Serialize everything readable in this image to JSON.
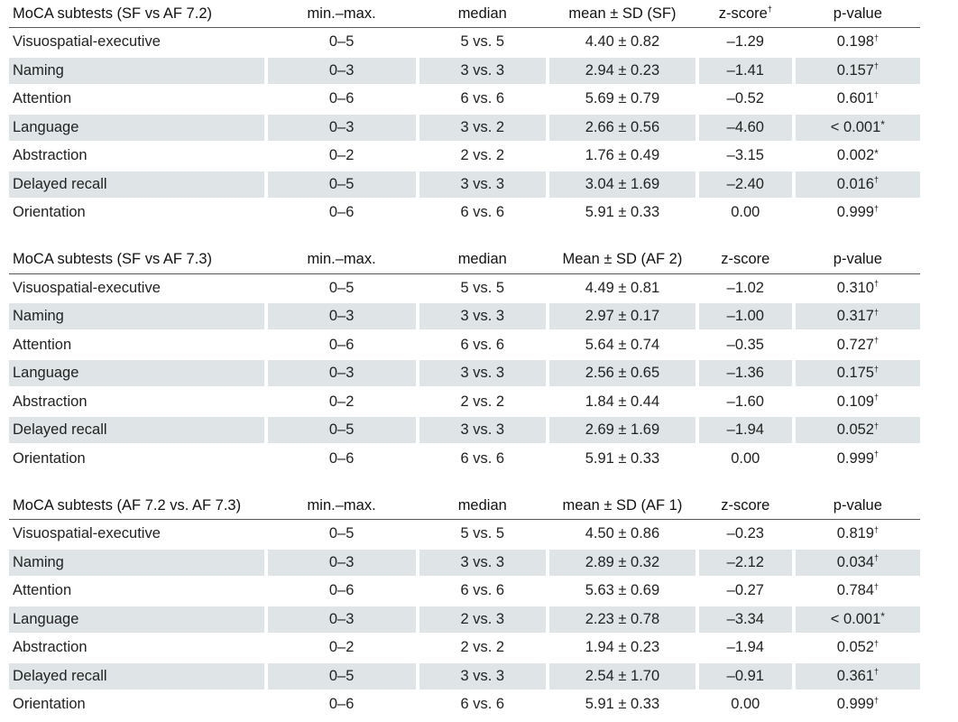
{
  "columns": {
    "range": "min.–max.",
    "median": "median",
    "zscore": "z-score",
    "zscore_mark": "†",
    "pvalue": "p-value"
  },
  "sections": [
    {
      "title": "MoCA subtests (SF vs AF 7.2)",
      "mean_header": "mean ± SD (SF)",
      "rows": [
        {
          "name": "Visuospatial-executive",
          "range": "0–5",
          "median": "5 vs. 5",
          "mean": "4.40 ± 0.82",
          "z": "–1.29",
          "p": "0.198",
          "mark": "†"
        },
        {
          "name": "Naming",
          "range": "0–3",
          "median": "3 vs. 3",
          "mean": "2.94 ± 0.23",
          "z": "–1.41",
          "p": "0.157",
          "mark": "†"
        },
        {
          "name": "Attention",
          "range": "0–6",
          "median": "6 vs. 6",
          "mean": "5.69 ± 0.79",
          "z": "–0.52",
          "p": "0.601",
          "mark": "†"
        },
        {
          "name": "Language",
          "range": "0–3",
          "median": "3 vs. 2",
          "mean": "2.66 ± 0.56",
          "z": "–4.60",
          "p": "< 0.001",
          "mark": "*"
        },
        {
          "name": "Abstraction",
          "range": "0–2",
          "median": "2 vs. 2",
          "mean": "1.76 ± 0.49",
          "z": "–3.15",
          "p": "0.002",
          "mark": "*"
        },
        {
          "name": "Delayed recall",
          "range": "0–5",
          "median": "3 vs. 3",
          "mean": "3.04 ± 1.69",
          "z": "–2.40",
          "p": "0.016",
          "mark": "†"
        },
        {
          "name": "Orientation",
          "range": "0–6",
          "median": "6 vs. 6",
          "mean": "5.91 ± 0.33",
          "z": "0.00",
          "p": "0.999",
          "mark": "†"
        }
      ]
    },
    {
      "title": "MoCA subtests (SF vs AF 7.3)",
      "mean_header": "Mean ± SD (AF 2)",
      "rows": [
        {
          "name": "Visuospatial-executive",
          "range": "0–5",
          "median": "5 vs. 5",
          "mean": "4.49 ± 0.81",
          "z": "–1.02",
          "p": "0.310",
          "mark": "†"
        },
        {
          "name": "Naming",
          "range": "0–3",
          "median": "3 vs. 3",
          "mean": "2.97 ± 0.17",
          "z": "–1.00",
          "p": "0.317",
          "mark": "†"
        },
        {
          "name": "Attention",
          "range": "0–6",
          "median": "6 vs. 6",
          "mean": "5.64 ± 0.74",
          "z": "–0.35",
          "p": "0.727",
          "mark": "†"
        },
        {
          "name": "Language",
          "range": "0–3",
          "median": "3 vs. 3",
          "mean": "2.56 ± 0.65",
          "z": "–1.36",
          "p": "0.175",
          "mark": "†"
        },
        {
          "name": "Abstraction",
          "range": "0–2",
          "median": "2 vs. 2",
          "mean": "1.84 ± 0.44",
          "z": "–1.60",
          "p": "0.109",
          "mark": "†"
        },
        {
          "name": "Delayed recall",
          "range": "0–5",
          "median": "3 vs. 3",
          "mean": "2.69 ± 1.69",
          "z": "–1.94",
          "p": "0.052",
          "mark": "†"
        },
        {
          "name": "Orientation",
          "range": "0–6",
          "median": "6 vs. 6",
          "mean": "5.91 ± 0.33",
          "z": "0.00",
          "p": "0.999",
          "mark": "†"
        }
      ]
    },
    {
      "title": "MoCA subtests (AF 7.2 vs. AF 7.3)",
      "mean_header": "mean ± SD (AF 1)",
      "rows": [
        {
          "name": "Visuospatial-executive",
          "range": "0–5",
          "median": "5 vs. 5",
          "mean": "4.50 ± 0.86",
          "z": "–0.23",
          "p": "0.819",
          "mark": "†"
        },
        {
          "name": "Naming",
          "range": "0–3",
          "median": "3 vs. 3",
          "mean": "2.89 ± 0.32",
          "z": "–2.12",
          "p": "0.034",
          "mark": "†"
        },
        {
          "name": "Attention",
          "range": "0–6",
          "median": "6 vs. 6",
          "mean": "5.63 ± 0.69",
          "z": "–0.27",
          "p": "0.784",
          "mark": "†"
        },
        {
          "name": "Language",
          "range": "0–3",
          "median": "2 vs. 3",
          "mean": "2.23 ± 0.78",
          "z": "–3.34",
          "p": "< 0.001",
          "mark": "*"
        },
        {
          "name": "Abstraction",
          "range": "0–2",
          "median": "2 vs. 2",
          "mean": "1.94 ± 0.23",
          "z": "–1.94",
          "p": "0.052",
          "mark": "†"
        },
        {
          "name": "Delayed recall",
          "range": "0–5",
          "median": "3 vs. 3",
          "mean": "2.54 ± 1.70",
          "z": "–0.91",
          "p": "0.361",
          "mark": "†"
        },
        {
          "name": "Orientation",
          "range": "0–6",
          "median": "6 vs. 6",
          "mean": "5.91 ± 0.33",
          "z": "0.00",
          "p": "0.999",
          "mark": "†"
        }
      ]
    }
  ]
}
